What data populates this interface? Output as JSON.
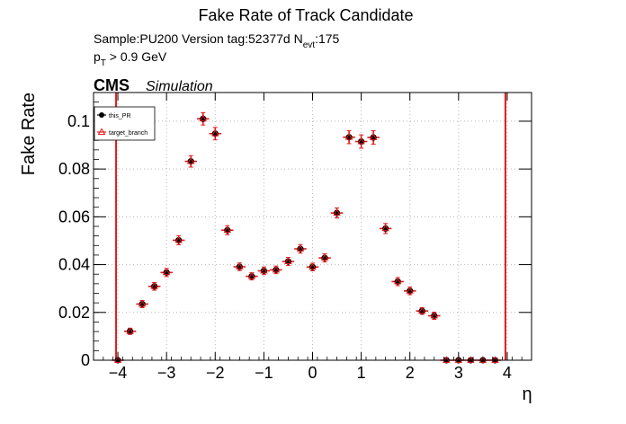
{
  "chart_data": {
    "type": "scatter",
    "title": "Fake Rate of Track Candidate",
    "info_line1": {
      "sample": "Sample:PU200   Version tag:52377d  N",
      "sub": "evt",
      "rest": ":175"
    },
    "info_line2": {
      "p": "p",
      "sub": "T",
      "rest": " > 0.9 GeV"
    },
    "cms_label": "CMS",
    "simulation_label": "Simulation",
    "xlabel": "η",
    "ylabel": "Fake Rate",
    "xlim": [
      -4.5,
      4.5
    ],
    "ylim": [
      0,
      0.112
    ],
    "grid": true,
    "legend_position": "top-left",
    "xticks": [
      {
        "v": -4,
        "label": "−4"
      },
      {
        "v": -3,
        "label": "−3"
      },
      {
        "v": -2,
        "label": "−2"
      },
      {
        "v": -1,
        "label": "−1"
      },
      {
        "v": 0,
        "label": "0"
      },
      {
        "v": 1,
        "label": "1"
      },
      {
        "v": 2,
        "label": "2"
      },
      {
        "v": 3,
        "label": "3"
      },
      {
        "v": 4,
        "label": "4"
      }
    ],
    "yticks": [
      {
        "v": 0,
        "label": "0"
      },
      {
        "v": 0.02,
        "label": "0.02"
      },
      {
        "v": 0.04,
        "label": "0.04"
      },
      {
        "v": 0.06,
        "label": "0.06"
      },
      {
        "v": 0.08,
        "label": "0.08"
      },
      {
        "v": 0.1,
        "label": "0.1"
      }
    ],
    "x_half_width": 0.125,
    "series": [
      {
        "name": "this_PR",
        "color": "#000000",
        "marker": "filled-circle",
        "x": [
          -4.0,
          -3.75,
          -3.5,
          -3.25,
          -3.0,
          -2.75,
          -2.5,
          -2.25,
          -2.0,
          -1.75,
          -1.5,
          -1.25,
          -1.0,
          -0.75,
          -0.5,
          -0.25,
          0.0,
          0.25,
          0.5,
          0.75,
          1.0,
          1.25,
          1.5,
          1.75,
          2.0,
          2.25,
          2.5,
          2.75,
          3.0,
          3.25,
          3.5,
          3.75
        ],
        "y": [
          0.0,
          0.0121,
          0.0235,
          0.0309,
          0.0367,
          0.0502,
          0.0832,
          0.101,
          0.0948,
          0.0544,
          0.0391,
          0.0351,
          0.0374,
          0.0378,
          0.0413,
          0.0466,
          0.039,
          0.0428,
          0.0616,
          0.0933,
          0.0915,
          0.0932,
          0.0551,
          0.0329,
          0.029,
          0.0206,
          0.0186,
          0.0,
          0.0,
          0.0,
          0.0,
          0.0
        ],
        "yerr": [
          0.0,
          0.0013,
          0.0015,
          0.0016,
          0.0017,
          0.0019,
          0.0024,
          0.0026,
          0.0026,
          0.0019,
          0.0016,
          0.0015,
          0.0016,
          0.0016,
          0.0017,
          0.0018,
          0.0016,
          0.0017,
          0.0021,
          0.0027,
          0.0028,
          0.0028,
          0.0021,
          0.0017,
          0.0016,
          0.0014,
          0.0015,
          0.0,
          0.0,
          0.0,
          0.0,
          0.0
        ]
      },
      {
        "name": "target_branch",
        "color": "#e41a1c",
        "marker": "open-triangle"
      }
    ]
  }
}
